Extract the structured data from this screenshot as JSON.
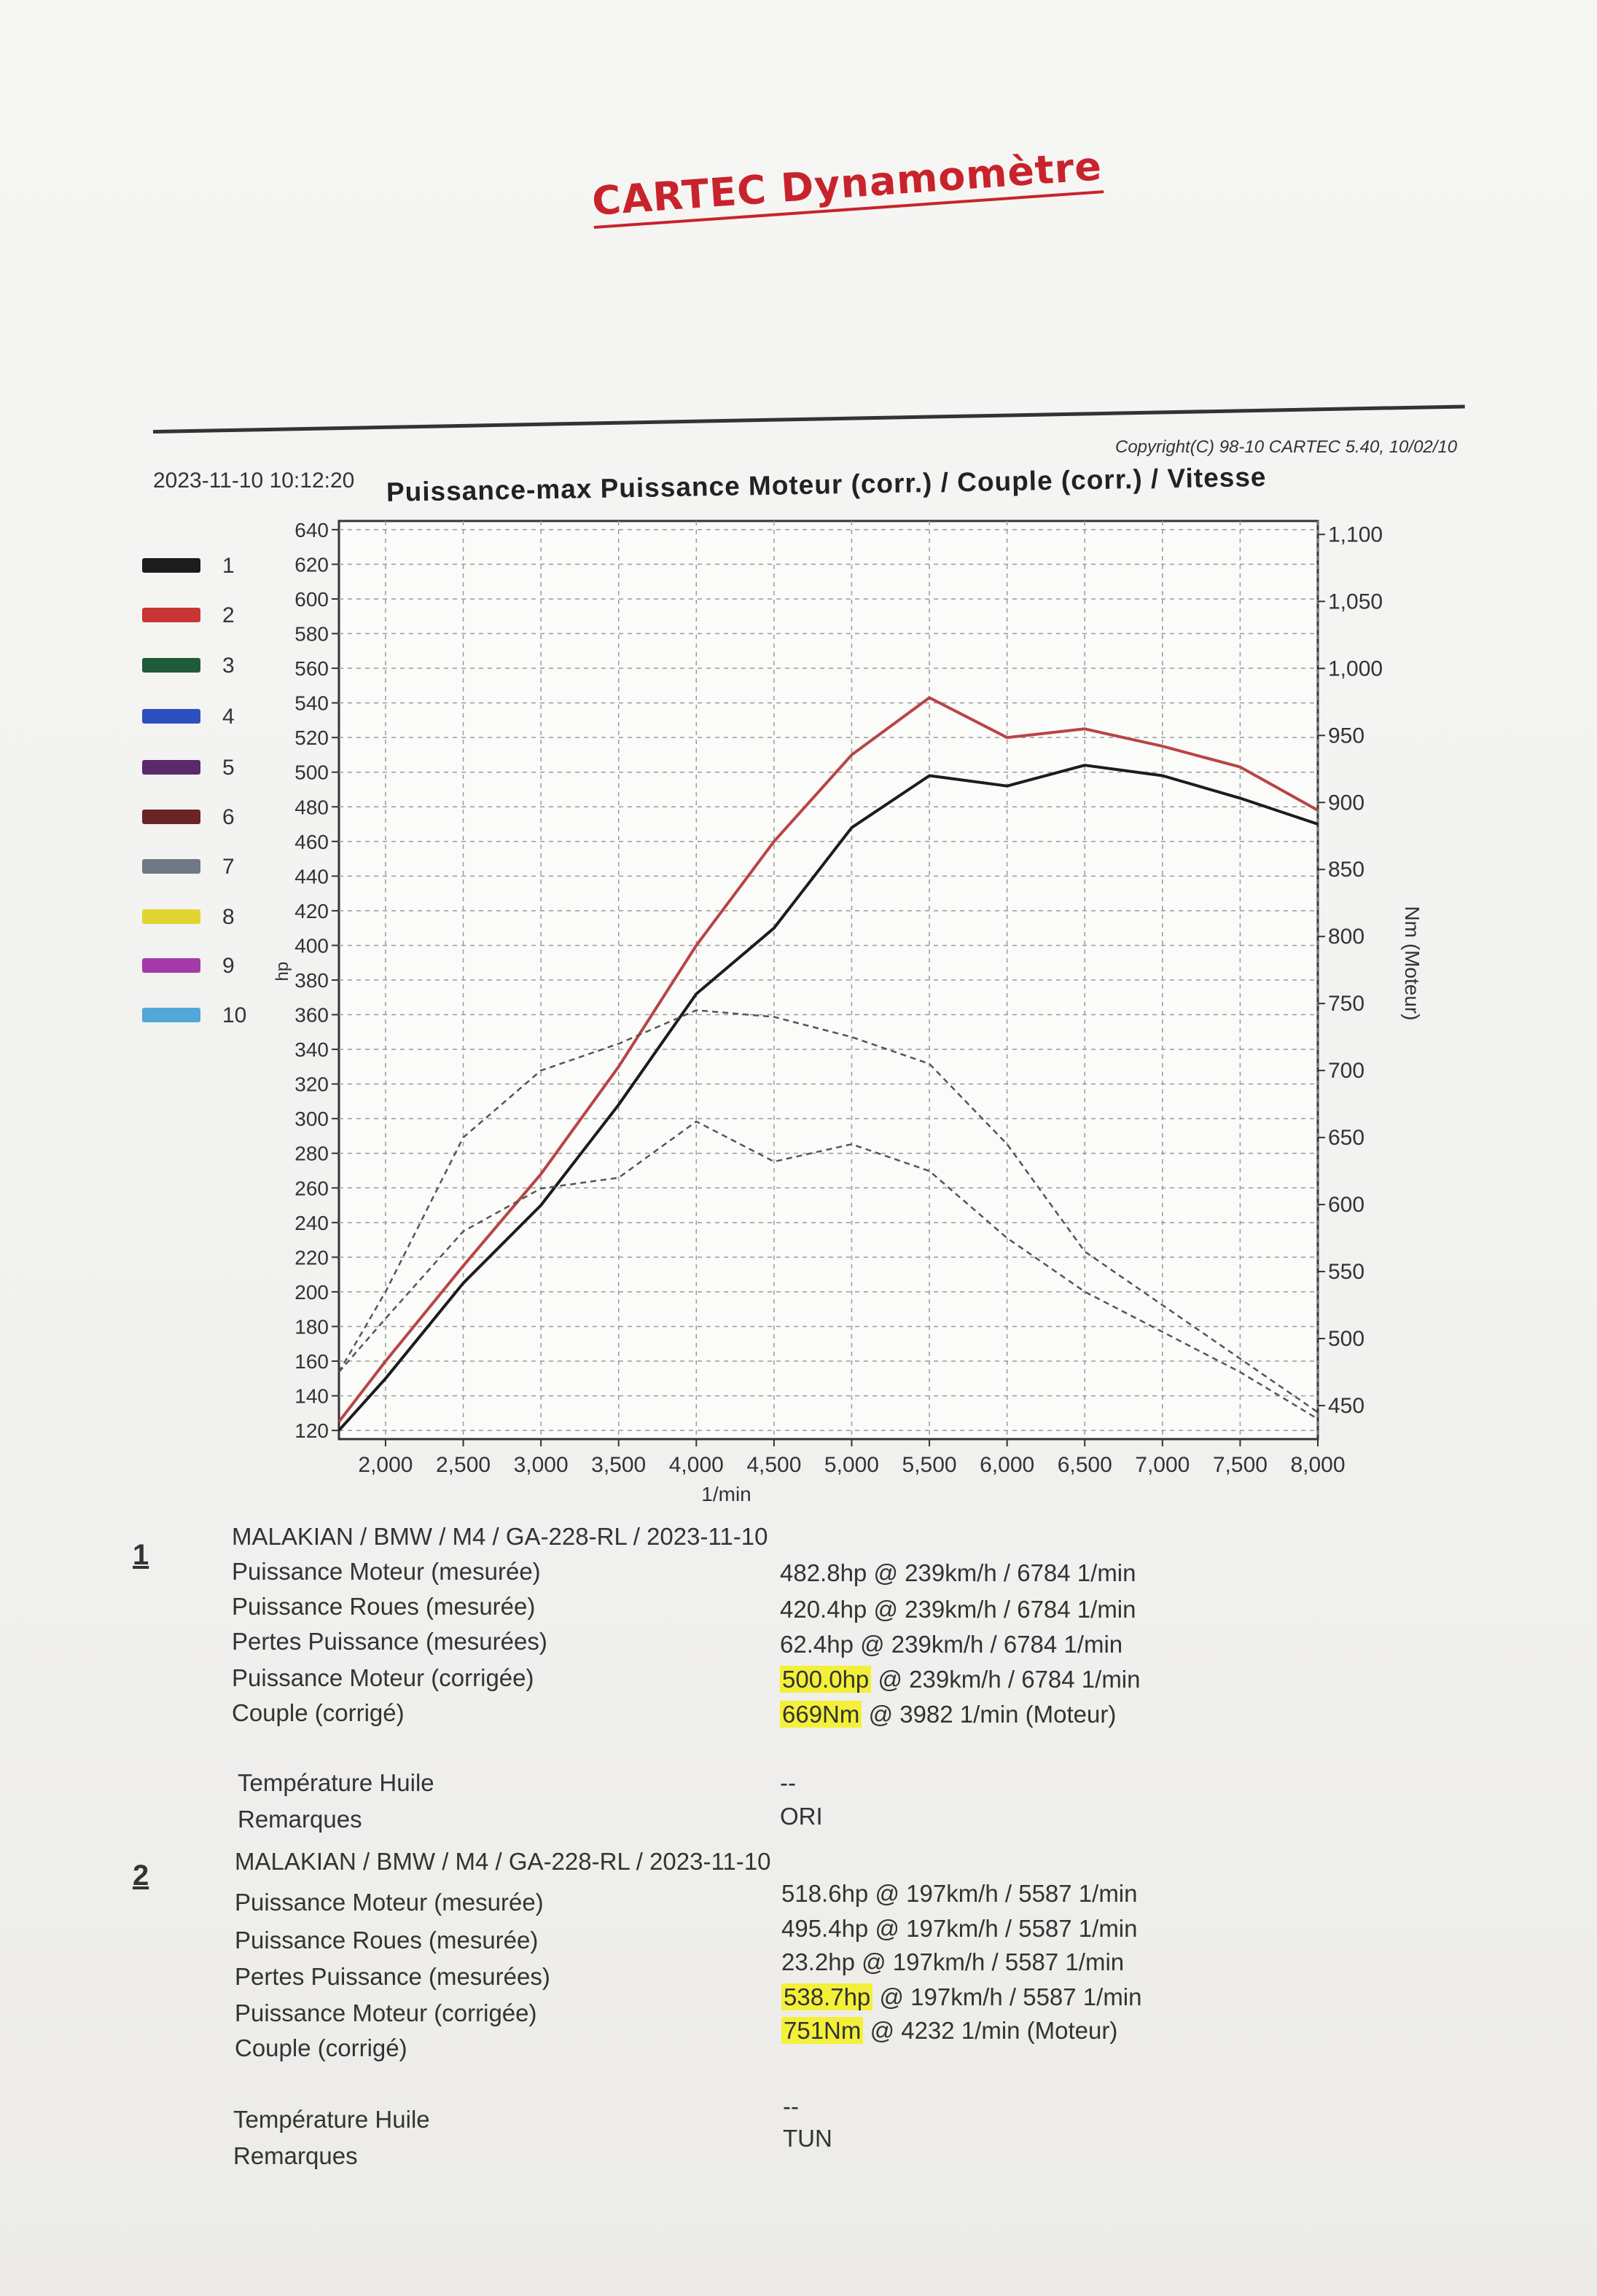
{
  "header": {
    "brand": "CARTEC Dynamomètre",
    "copyright": "Copyright(C) 98-10 CARTEC 5.40, 10/02/10",
    "datetime": "2023-11-10 10:12:20"
  },
  "legend": [
    {
      "label": "1",
      "color": "#1c1c1c"
    },
    {
      "label": "2",
      "color": "#c83535"
    },
    {
      "label": "3",
      "color": "#1f5a3a"
    },
    {
      "label": "4",
      "color": "#2d4fbf"
    },
    {
      "label": "5",
      "color": "#5a2a6a"
    },
    {
      "label": "6",
      "color": "#6a2424"
    },
    {
      "label": "7",
      "color": "#707884"
    },
    {
      "label": "8",
      "color": "#e2d431"
    },
    {
      "label": "9",
      "color": "#a43aa8"
    },
    {
      "label": "10",
      "color": "#52a6d8"
    }
  ],
  "chart_data": {
    "type": "line",
    "title": "Puissance-max Puissance Moteur (corr.) / Couple (corr.) / Vitesse",
    "xlabel": "1/min",
    "ylabel": "hp",
    "y2label": "Nm (Moteur)",
    "xlim": [
      1700,
      8000
    ],
    "ylim": [
      115,
      645
    ],
    "y2lim": [
      425,
      1110
    ],
    "x_ticks": [
      2000,
      2500,
      3000,
      3500,
      4000,
      4500,
      5000,
      5500,
      6000,
      6500,
      7000,
      7500,
      8000
    ],
    "x_tick_labels": [
      "2,000",
      "2,500",
      "3,000",
      "3,500",
      "4,000",
      "4,500",
      "5,000",
      "5,500",
      "6,000",
      "6,500",
      "7,000",
      "7,500",
      "8,000"
    ],
    "y_ticks": [
      120,
      140,
      160,
      180,
      200,
      220,
      240,
      260,
      280,
      300,
      320,
      340,
      360,
      380,
      400,
      420,
      440,
      460,
      480,
      500,
      520,
      540,
      560,
      580,
      600,
      620,
      640
    ],
    "y2_ticks": [
      450,
      500,
      550,
      600,
      650,
      700,
      750,
      800,
      850,
      900,
      950,
      1000,
      1050,
      1100
    ],
    "y2_tick_labels": [
      "450",
      "500",
      "550",
      "600",
      "650",
      "700",
      "750",
      "800",
      "850",
      "900",
      "950",
      "1,000",
      "1,050",
      "1,100"
    ],
    "grid": true,
    "series": [
      {
        "name": "1",
        "axis": "left",
        "style": "solid",
        "color": "#1c1c1c",
        "x": [
          1700,
          2000,
          2500,
          3000,
          3500,
          4000,
          4500,
          5000,
          5500,
          6000,
          6500,
          7000,
          7500,
          8000
        ],
        "y": [
          120,
          150,
          205,
          250,
          308,
          372,
          410,
          468,
          498,
          492,
          504,
          498,
          485,
          470
        ]
      },
      {
        "name": "2",
        "axis": "left",
        "style": "solid",
        "color": "#b84545",
        "x": [
          1700,
          2000,
          2500,
          3000,
          3500,
          4000,
          4500,
          5000,
          5500,
          6000,
          6500,
          7000,
          7500,
          8000
        ],
        "y": [
          125,
          160,
          215,
          268,
          330,
          400,
          460,
          510,
          543,
          520,
          525,
          515,
          503,
          478
        ]
      },
      {
        "name": "1",
        "axis": "right",
        "style": "dashed",
        "color": "#555555",
        "x": [
          1700,
          2000,
          2500,
          3000,
          3500,
          4000,
          4500,
          5000,
          5500,
          6000,
          6500,
          7000,
          7500,
          8000
        ],
        "y": [
          475,
          515,
          580,
          612,
          620,
          662,
          632,
          645,
          625,
          575,
          535,
          505,
          475,
          440
        ]
      },
      {
        "name": "2",
        "axis": "right",
        "style": "dashed",
        "color": "#555555",
        "x": [
          1700,
          2000,
          2500,
          3000,
          3500,
          4000,
          4500,
          5000,
          5500,
          6000,
          6500,
          7000,
          7500,
          8000
        ],
        "y": [
          475,
          535,
          650,
          700,
          720,
          745,
          740,
          725,
          705,
          645,
          565,
          525,
          485,
          445
        ]
      }
    ]
  },
  "results": [
    {
      "number": "1",
      "vehicle": "MALAKIAN / BMW / M4 / GA-228-RL / 2023-11-10",
      "rows": [
        {
          "label": "Puissance Moteur (mesurée)",
          "value": "482.8hp",
          "detail": "@ 239km/h / 6784 1/min"
        },
        {
          "label": "Puissance Roues (mesurée)",
          "value": "420.4hp",
          "detail": "@ 239km/h / 6784 1/min"
        },
        {
          "label": "Pertes Puissance (mesurées)",
          "value": "62.4hp",
          "detail": "@ 239km/h / 6784 1/min"
        },
        {
          "label": "Puissance Moteur (corrigée)",
          "value": "500.0hp",
          "detail": "@ 239km/h / 6784 1/min"
        },
        {
          "label": "Couple (corrigé)",
          "value": "669Nm",
          "detail": "@ 3982 1/min (Moteur)"
        }
      ],
      "oil_temp_label": "Température Huile",
      "oil_temp_value": "--",
      "remarks_label": "Remarques",
      "remarks_value": "ORI"
    },
    {
      "number": "2",
      "vehicle": "MALAKIAN / BMW / M4 / GA-228-RL / 2023-11-10",
      "rows": [
        {
          "label": "Puissance Moteur (mesurée)",
          "value": "518.6hp",
          "detail": "@ 197km/h / 5587 1/min"
        },
        {
          "label": "Puissance Roues (mesurée)",
          "value": "495.4hp",
          "detail": "@ 197km/h / 5587 1/min"
        },
        {
          "label": "Pertes Puissance (mesurées)",
          "value": "23.2hp",
          "detail": "@ 197km/h / 5587 1/min"
        },
        {
          "label": "Puissance Moteur (corrigée)",
          "value": "538.7hp",
          "detail": "@ 197km/h / 5587 1/min"
        },
        {
          "label": "Couple (corrigé)",
          "value": "751Nm",
          "detail": "@ 4232 1/min (Moteur)"
        }
      ],
      "oil_temp_label": "Température Huile",
      "oil_temp_value": "--",
      "remarks_label": "Remarques",
      "remarks_value": "TUN"
    }
  ]
}
